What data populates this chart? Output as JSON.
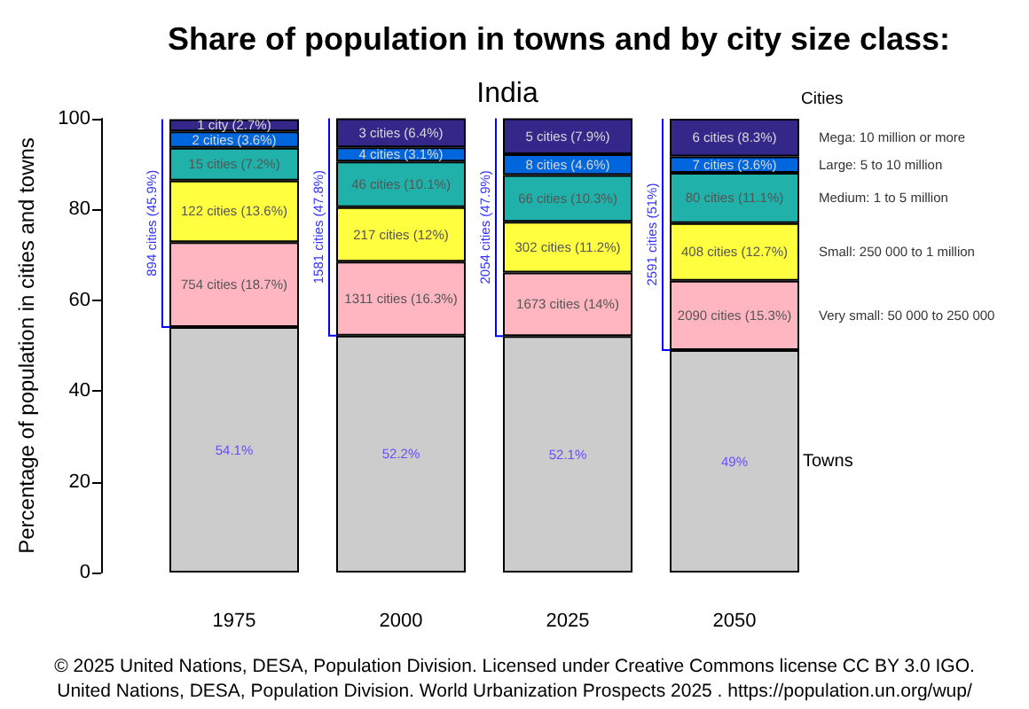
{
  "chart_data": {
    "type": "bar",
    "title": "Share of population in towns and by city size class:",
    "subtitle": "India",
    "ylabel": "Percentage of population in cities and towns",
    "legend_title": "Cities",
    "categories": [
      "1975",
      "2000",
      "2025",
      "2050"
    ],
    "stacked": true,
    "ylim": [
      0,
      100
    ],
    "yticks": [
      0,
      20,
      40,
      60,
      80,
      100
    ],
    "series": [
      {
        "name": "Towns",
        "color": "#cccccc",
        "values": [
          54.1,
          52.2,
          52.1,
          49
        ],
        "value_labels": [
          "54.1%",
          "52.2%",
          "52.1%",
          "49%"
        ]
      },
      {
        "name": "Very small: 50 000 to 250 000",
        "color": "#ffb6c1",
        "values": [
          18.7,
          16.3,
          14,
          15.3
        ],
        "value_labels": [
          "754 cities (18.7%)",
          "1311 cities (16.3%)",
          "1673 cities (14%)",
          "2090 cities (15.3%)"
        ]
      },
      {
        "name": "Small: 250 000 to 1 million",
        "color": "#ffff40",
        "values": [
          13.6,
          12,
          11.2,
          12.7
        ],
        "value_labels": [
          "122 cities (13.6%)",
          "217 cities (12%)",
          "302 cities (11.2%)",
          "408 cities (12.7%)"
        ]
      },
      {
        "name": "Medium: 1 to 5 million",
        "color": "#20b2aa",
        "values": [
          7.2,
          10.1,
          10.3,
          11.1
        ],
        "value_labels": [
          "15 cities (7.2%)",
          "46 cities (10.1%)",
          "66 cities (10.3%)",
          "80 cities (11.1%)"
        ]
      },
      {
        "name": "Large: 5 to 10 million",
        "color": "#0066dd",
        "values": [
          3.6,
          3.1,
          4.6,
          3.6
        ],
        "value_labels": [
          "2 cities (3.6%)",
          "4 cities (3.1%)",
          "8 cities (4.6%)",
          "7 cities (3.6%)"
        ]
      },
      {
        "name": "Mega: 10 million or more",
        "color": "#33288a",
        "values": [
          2.7,
          6.4,
          7.9,
          8.3
        ],
        "value_labels": [
          "1 city (2.7%)",
          "3 cities (6.4%)",
          "5 cities (7.9%)",
          "6 cities (8.3%)"
        ]
      }
    ],
    "annotations": [
      "894 cities (45.9%)",
      "1581 cities (47.8%)",
      "2054 cities (47.9%)",
      "2591 cities (51%)",
      "© 2025 United Nations, DESA, Population Division. Licensed under Creative Commons license CC BY 3.0 IGO.",
      "United Nations, DESA, Population Division. World Urbanization Prospects 2025 . https://population.un.org/wup/"
    ]
  }
}
